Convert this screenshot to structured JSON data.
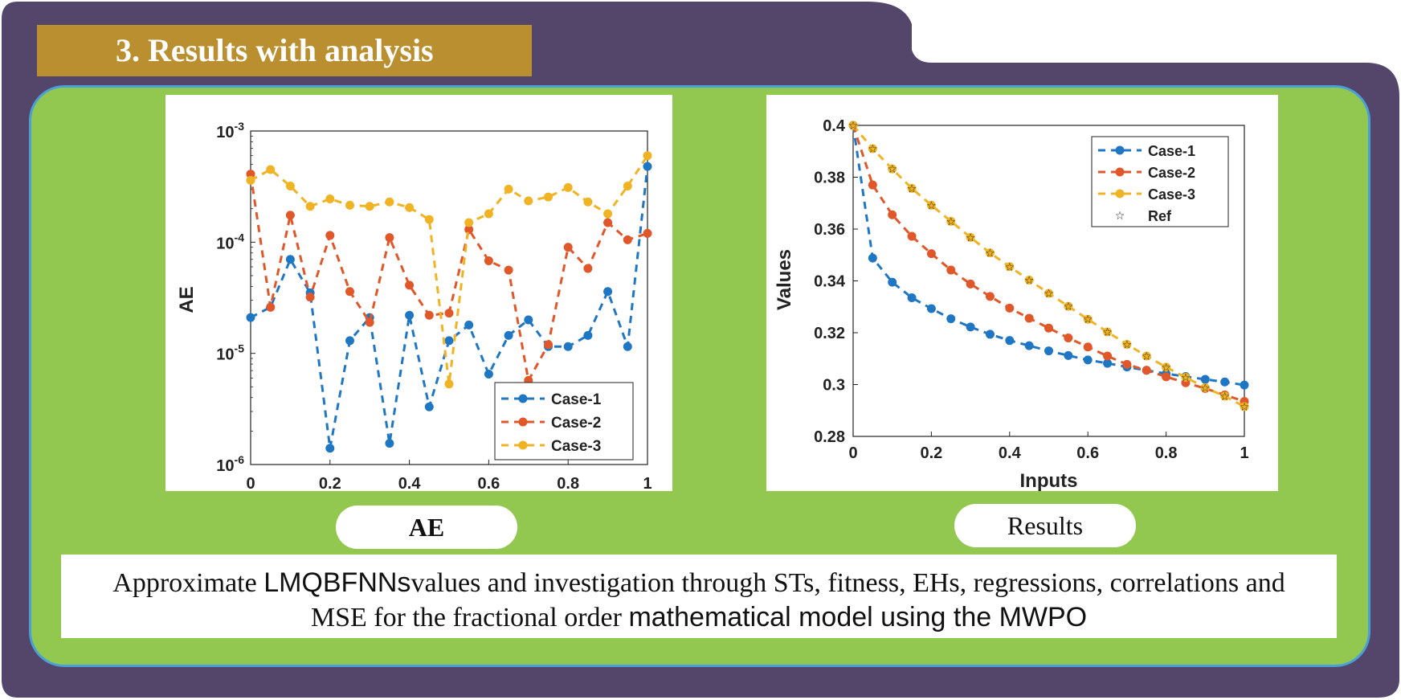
{
  "colors": {
    "frame": "#54456a",
    "green": "#92c850",
    "border": "#4a9fd8",
    "banner": "#b98f2f",
    "case1": "#1f77c4",
    "case2": "#e0572a",
    "case3": "#f0b323"
  },
  "banner": {
    "title": "3. Results with analysis"
  },
  "panels": {
    "left_label": "AE",
    "right_label": "Results"
  },
  "caption": {
    "part1": "Approximate ",
    "part2": "LMQBFNNs",
    "part3": "values and investigation through STs, fitness, EHs, regressions, correlations and",
    "part4": "MSE for the fractional order ",
    "part5": "mathematical model using the MWPO"
  },
  "chart_data": [
    {
      "type": "line",
      "title": "",
      "ylabel": "AE",
      "xlabel": "",
      "yscale": "log",
      "ylim": [
        1e-06,
        0.001
      ],
      "xlim": [
        0,
        1
      ],
      "x_ticks": [
        "0",
        "0.2",
        "0.4",
        "0.6",
        "0.8",
        "1"
      ],
      "y_ticks": [
        {
          "base": "10",
          "exp": "-3",
          "value": 0.001
        },
        {
          "base": "10",
          "exp": "-4",
          "value": 0.0001
        },
        {
          "base": "10",
          "exp": "-5",
          "value": 1e-05
        },
        {
          "base": "10",
          "exp": "-6",
          "value": 1e-06
        }
      ],
      "legend": [
        "Case-1",
        "Case-2",
        "Case-3"
      ],
      "legend_position": "bottom-right",
      "x": [
        0,
        0.05,
        0.1,
        0.15,
        0.2,
        0.25,
        0.3,
        0.35,
        0.4,
        0.45,
        0.5,
        0.55,
        0.6,
        0.65,
        0.7,
        0.75,
        0.8,
        0.85,
        0.9,
        0.95,
        1
      ],
      "series": [
        {
          "name": "Case-1",
          "values": [
            2.1e-05,
            2.6e-05,
            7e-05,
            3.5e-05,
            1.4e-06,
            1.3e-05,
            2.1e-05,
            1.55e-06,
            2.2e-05,
            3.3e-06,
            1.3e-05,
            1.8e-05,
            6.5e-06,
            1.45e-05,
            2e-05,
            1.15e-05,
            1.15e-05,
            1.45e-05,
            3.6e-05,
            1.15e-05,
            0.00048
          ]
        },
        {
          "name": "Case-2",
          "values": [
            0.00041,
            2.6e-05,
            0.000175,
            3.2e-05,
            0.000115,
            3.6e-05,
            1.9e-05,
            0.00011,
            4.1e-05,
            2.2e-05,
            2.3e-05,
            0.00013,
            6.8e-05,
            5.6e-05,
            5.7e-06,
            1.2e-05,
            9e-05,
            5.8e-05,
            0.00015,
            0.000105,
            0.00012
          ]
        },
        {
          "name": "Case-3",
          "values": [
            0.00036,
            0.00045,
            0.00032,
            0.00021,
            0.000245,
            0.000215,
            0.00021,
            0.00023,
            0.000205,
            0.00016,
            5.3e-06,
            0.00015,
            0.00018,
            0.0003,
            0.000235,
            0.000255,
            0.00031,
            0.00023,
            0.00018,
            0.00032,
            0.0006
          ]
        }
      ]
    },
    {
      "type": "line",
      "title": "",
      "ylabel": "Values",
      "xlabel": "Inputs",
      "ylim": [
        0.28,
        0.4
      ],
      "xlim": [
        0,
        1
      ],
      "x_ticks": [
        "0",
        "0.2",
        "0.4",
        "0.6",
        "0.8",
        "1"
      ],
      "y_ticks": [
        "0.28",
        "0.3",
        "0.32",
        "0.34",
        "0.36",
        "0.38",
        "0.4"
      ],
      "legend": [
        "Case-1",
        "Case-2",
        "Case-3",
        "Ref"
      ],
      "legend_position": "top-right",
      "x": [
        0,
        0.05,
        0.1,
        0.15,
        0.2,
        0.25,
        0.3,
        0.35,
        0.4,
        0.45,
        0.5,
        0.55,
        0.6,
        0.65,
        0.7,
        0.75,
        0.8,
        0.85,
        0.9,
        0.95,
        1
      ],
      "series": [
        {
          "name": "Case-1",
          "values": [
            0.4,
            0.3488,
            0.3395,
            0.3335,
            0.3293,
            0.3254,
            0.3222,
            0.3194,
            0.317,
            0.315,
            0.313,
            0.3112,
            0.3095,
            0.3082,
            0.3068,
            0.3055,
            0.3042,
            0.3031,
            0.302,
            0.301,
            0.2998
          ]
        },
        {
          "name": "Case-2",
          "values": [
            0.4,
            0.377,
            0.3655,
            0.3572,
            0.3505,
            0.3442,
            0.3388,
            0.334,
            0.3295,
            0.3256,
            0.3218,
            0.318,
            0.3145,
            0.311,
            0.3078,
            0.3055,
            0.303,
            0.3007,
            0.2985,
            0.296,
            0.2935
          ]
        },
        {
          "name": "Case-3",
          "values": [
            0.4,
            0.391,
            0.3832,
            0.3757,
            0.3692,
            0.363,
            0.3568,
            0.3508,
            0.3455,
            0.3403,
            0.3352,
            0.3302,
            0.3252,
            0.3203,
            0.3155,
            0.311,
            0.3067,
            0.3028,
            0.2988,
            0.2955,
            0.2915
          ]
        },
        {
          "name": "Ref",
          "values": [
            0.4,
            0.391,
            0.3832,
            0.3757,
            0.3692,
            0.363,
            0.3568,
            0.3508,
            0.3455,
            0.3403,
            0.3352,
            0.3302,
            0.3252,
            0.3203,
            0.3155,
            0.311,
            0.3067,
            0.3028,
            0.2988,
            0.2955,
            0.2915
          ]
        }
      ]
    }
  ]
}
